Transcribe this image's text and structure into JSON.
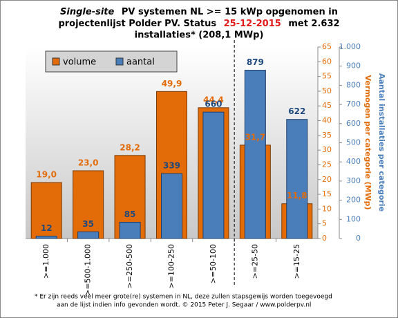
{
  "chart_data": {
    "type": "bar",
    "title": {
      "line1": [
        "Single-site",
        "PV systemen NL >= 15 kWp opgenomen in"
      ],
      "line2": [
        "projectenlijst Polder PV. Status",
        "25-12-2015",
        "met 2.632"
      ],
      "line3": "installaties* (208,1 MWp)"
    },
    "categories": [
      ">=1.000",
      ">=500-1.000",
      ">=250-500",
      ">=100-250",
      ">=50-100",
      ">=25-50",
      ">=15-25"
    ],
    "series": [
      {
        "name": "volume",
        "color": "#e36c09",
        "values": [
          19.0,
          23.0,
          28.2,
          49.9,
          44.4,
          31.7,
          11.8
        ],
        "value_labels": [
          "19,0",
          "23,0",
          "28,2",
          "49,9",
          "44,4",
          "31,7",
          "11,8"
        ]
      },
      {
        "name": "aantal",
        "color": "#4a7ebb",
        "axis": "y2",
        "values": [
          12,
          35,
          85,
          339,
          660,
          879,
          622
        ]
      }
    ],
    "ylim": [
      0,
      65
    ],
    "yticks": [
      0,
      5,
      10,
      15,
      20,
      25,
      30,
      35,
      40,
      45,
      50,
      55,
      60,
      65
    ],
    "y2lim": [
      0,
      1000
    ],
    "y2ticks": [
      0,
      100,
      200,
      300,
      400,
      500,
      600,
      700,
      800,
      900,
      {
        "value": 1000,
        "label": "1.000"
      }
    ],
    "ylabel": "Vermogen per categorie (MWp)",
    "y2label": "Aantal installaties per categorie",
    "footnote": [
      "* Er zijn reeds veel meer grote(re) systemen in NL, deze zullen stapsgewijs worden toegevoegd",
      "aan de lijst indien info gevonden wordt. © 2015 Peter J. Segaar / www.polderpv.nl"
    ]
  }
}
